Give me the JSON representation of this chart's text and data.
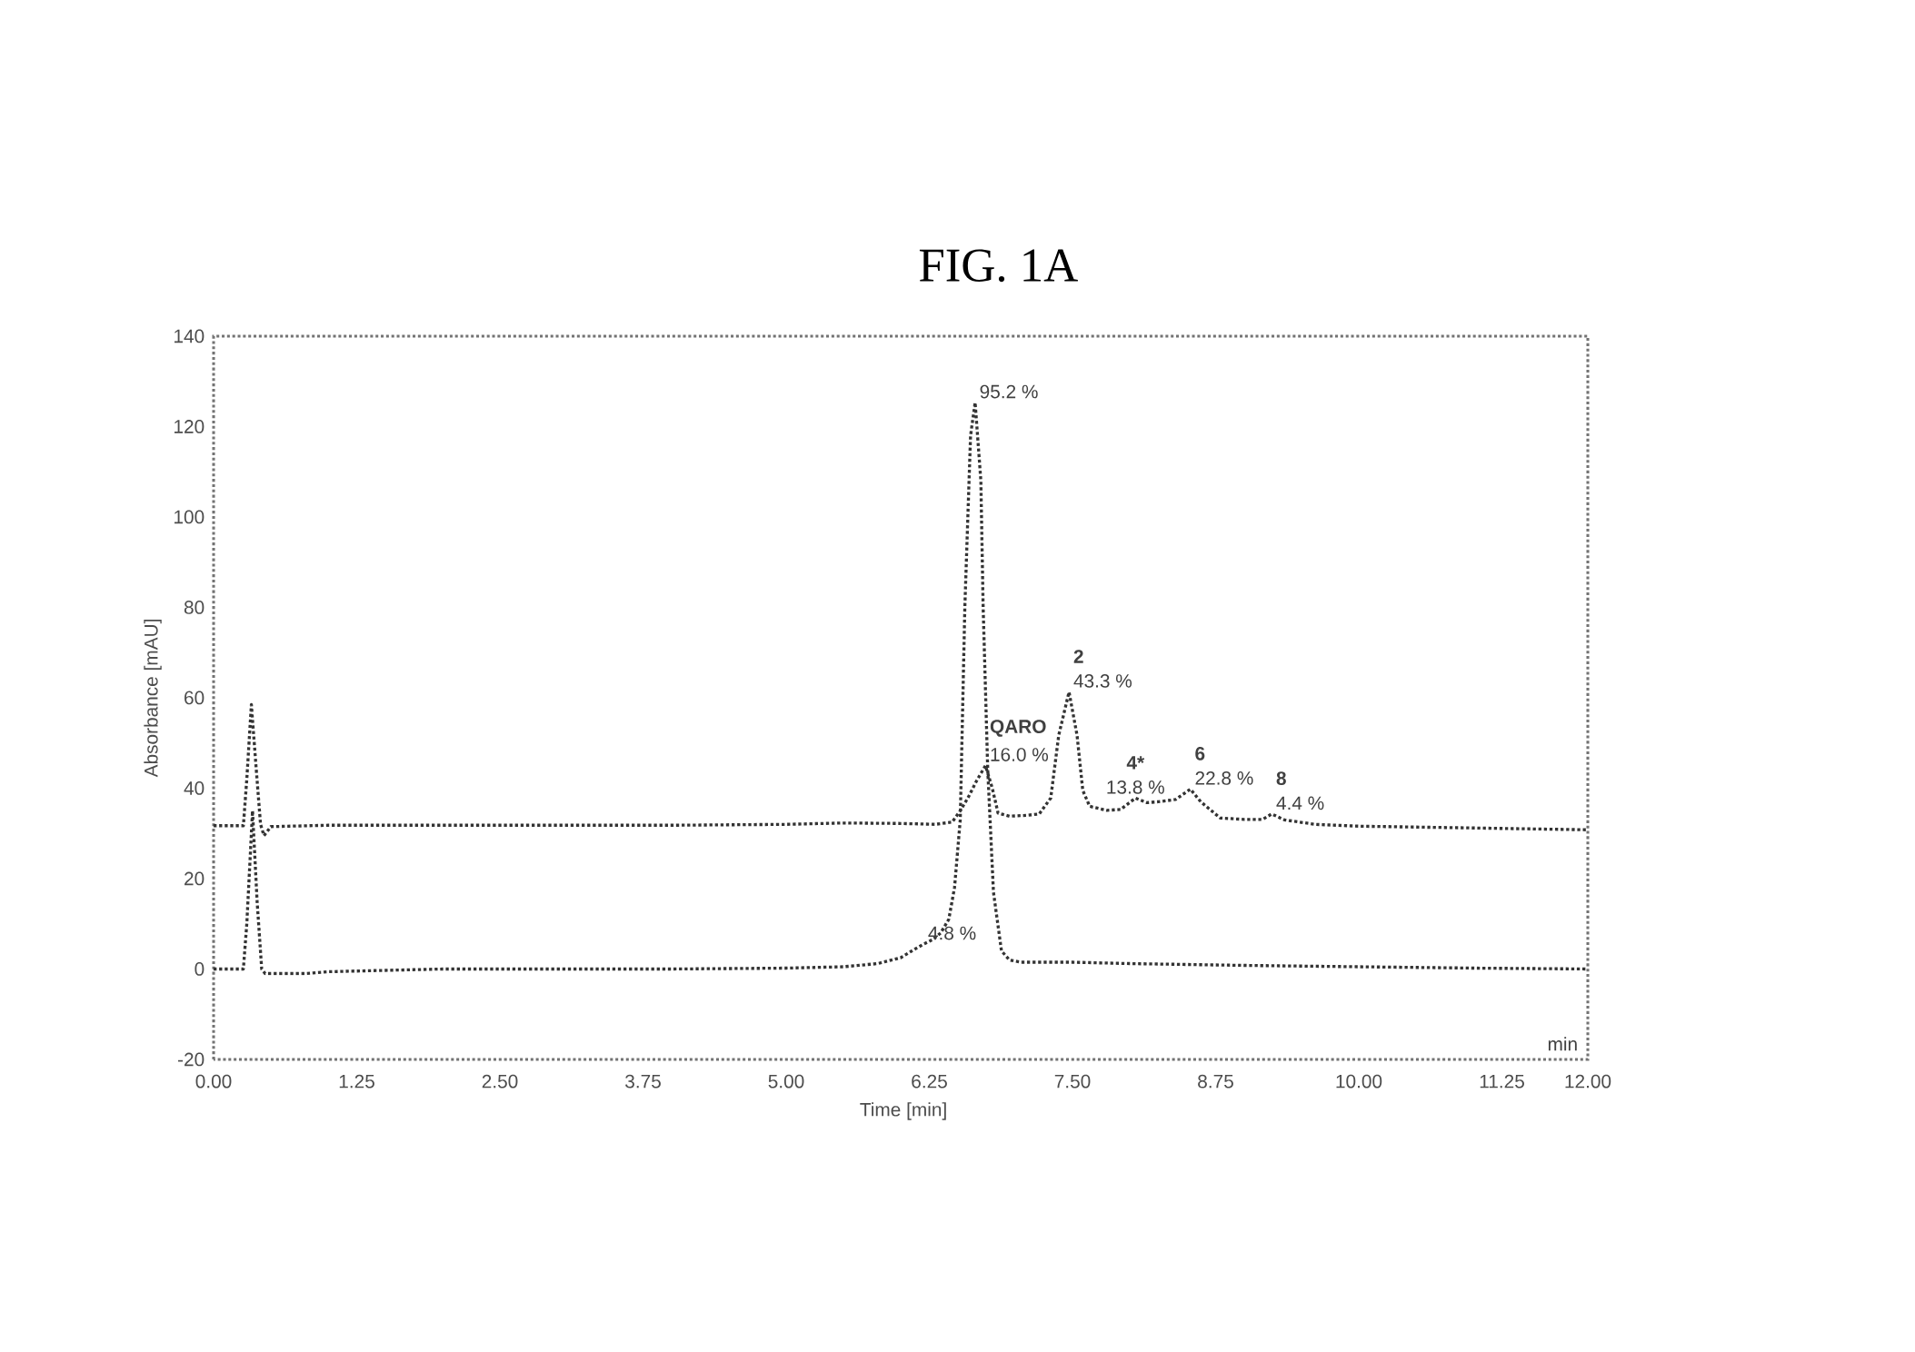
{
  "chart_data": {
    "type": "line",
    "title": "FIG. 1A",
    "xlabel": "Time [min]",
    "ylabel": "Absorbance [mAU]",
    "xlim": [
      0,
      12
    ],
    "ylim": [
      -20,
      140
    ],
    "xticks": [
      {
        "value": 0,
        "label": "0.00"
      },
      1.25,
      {
        "value": 2.5,
        "label": "2.50"
      },
      3.75,
      {
        "value": 5,
        "label": "5.00"
      },
      6.25,
      {
        "value": 7.5,
        "label": "7.50"
      },
      8.75,
      {
        "value": 10,
        "label": "10.00"
      },
      11.25,
      {
        "value": 12,
        "label": "12.00"
      }
    ],
    "yticks": [
      -20,
      0,
      20,
      40,
      60,
      80,
      100,
      120,
      140
    ],
    "line_style": "dotted",
    "series": [
      {
        "color": "#333333",
        "x": [
          0,
          0.26,
          0.29,
          0.34,
          0.38,
          0.42,
          0.45,
          0.8,
          1,
          1.5,
          2,
          3,
          4,
          5,
          5.5,
          5.8,
          6,
          6.13,
          6.2,
          6.28,
          6.35,
          6.42,
          6.47,
          6.52,
          6.56,
          6.61,
          6.65,
          6.7,
          6.72,
          6.76,
          6.81,
          6.88,
          6.95,
          7.05,
          7.5,
          8,
          9,
          10,
          11,
          12
        ],
        "values": [
          0,
          0,
          10,
          35,
          15,
          0,
          -1,
          -1,
          -0.6,
          -0.3,
          0,
          0,
          0,
          0.2,
          0.5,
          1.2,
          2.5,
          4.5,
          5.5,
          6.5,
          8,
          11,
          18,
          33,
          80,
          118,
          125.3,
          108,
          80,
          44,
          17,
          4,
          2,
          1.5,
          1.5,
          1.2,
          0.8,
          0.5,
          0.2,
          0
        ]
      },
      {
        "color": "#333333",
        "x": [
          0,
          0.26,
          0.29,
          0.33,
          0.37,
          0.41,
          0.44,
          0.5,
          1,
          2,
          3,
          4,
          5,
          5.5,
          6,
          6.3,
          6.45,
          6.52,
          6.59,
          6.66,
          6.74,
          6.8,
          6.85,
          6.95,
          7.1,
          7.21,
          7.31,
          7.38,
          7.47,
          7.54,
          7.59,
          7.65,
          7.8,
          7.92,
          8.05,
          8.15,
          8.25,
          8.4,
          8.53,
          8.62,
          8.79,
          9,
          9.16,
          9.24,
          9.35,
          9.62,
          10,
          11,
          12
        ],
        "values": [
          31.7,
          31.7,
          42,
          58.5,
          45,
          32,
          29.5,
          31.5,
          31.8,
          31.8,
          31.8,
          31.8,
          32,
          32.3,
          32.2,
          32,
          32.5,
          35,
          38,
          41.5,
          45,
          40,
          34.5,
          33.8,
          34,
          34.3,
          37.8,
          51.7,
          61.3,
          51.7,
          39.5,
          36,
          35.1,
          35.3,
          37.8,
          36.8,
          37,
          37.5,
          39.8,
          37,
          33.4,
          33.1,
          33.1,
          34.3,
          33,
          32,
          31.6,
          31.2,
          30.8
        ]
      }
    ],
    "annotations": [
      {
        "text": "95.2 %",
        "x": 6.65,
        "y": 125.3
      },
      {
        "text": "4.8 %",
        "x": 6.2,
        "y": 5.5
      },
      {
        "text": "16.0 %",
        "x": 6.74,
        "y": 45
      },
      {
        "text": "QARO",
        "x": 6.74,
        "y": 45
      },
      {
        "text": "43.3 %",
        "x": 7.47,
        "y": 61.3
      },
      {
        "text": "2",
        "x": 7.47,
        "y": 61.3
      },
      {
        "text": "13.8 %",
        "x": 8.05,
        "y": 37.8
      },
      {
        "text": "4*",
        "x": 8.05,
        "y": 37.8
      },
      {
        "text": "22.8 %",
        "x": 8.53,
        "y": 39.8
      },
      {
        "text": "6",
        "x": 8.53,
        "y": 39.8
      },
      {
        "text": "4.4 %",
        "x": 9.24,
        "y": 34.3
      },
      {
        "text": "8",
        "x": 9.24,
        "y": 34.3
      },
      "min"
    ]
  }
}
